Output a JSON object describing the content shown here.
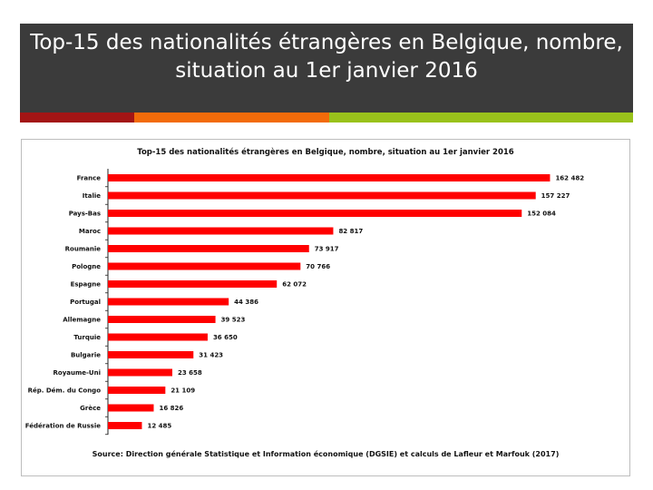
{
  "slide": {
    "title_line1": "Top-15 des nationalités étrangères en Belgique, nombre,",
    "title_line2": "situation au 1er janvier 2016",
    "title_bg": "#3b3b3b",
    "stripes": [
      "#a31515",
      "#f26b0a",
      "#99c21b"
    ]
  },
  "chart_data": {
    "type": "bar",
    "orientation": "horizontal",
    "title": "Top-15 des nationalités étrangères en Belgique, nombre, situation au 1er janvier 2016",
    "source": "Source: Direction générale Statistique et Information économique (DGSIE) et calculs de Lafleur et Marfouk (2017)",
    "bar_color": "#ff0000",
    "categories": [
      "France",
      "Italie",
      "Pays-Bas",
      "Maroc",
      "Roumanie",
      "Pologne",
      "Espagne",
      "Portugal",
      "Allemagne",
      "Turquie",
      "Bulgarie",
      "Royaume-Uni",
      "Rép. Dém. du Congo",
      "Grèce",
      "Fédération de Russie"
    ],
    "values": [
      162482,
      157227,
      152084,
      82817,
      73917,
      70766,
      62072,
      44386,
      39523,
      36650,
      31423,
      23658,
      21109,
      16826,
      12485
    ],
    "value_labels": [
      "162 482",
      "157 227",
      "152 084",
      "82 817",
      "73 917",
      "70 766",
      "62 072",
      "44 386",
      "39 523",
      "36 650",
      "31 423",
      "23 658",
      "21 109",
      "16 826",
      "12 485"
    ],
    "xlim": [
      0,
      170000
    ],
    "xlabel": "",
    "ylabel": "",
    "grid": false
  }
}
